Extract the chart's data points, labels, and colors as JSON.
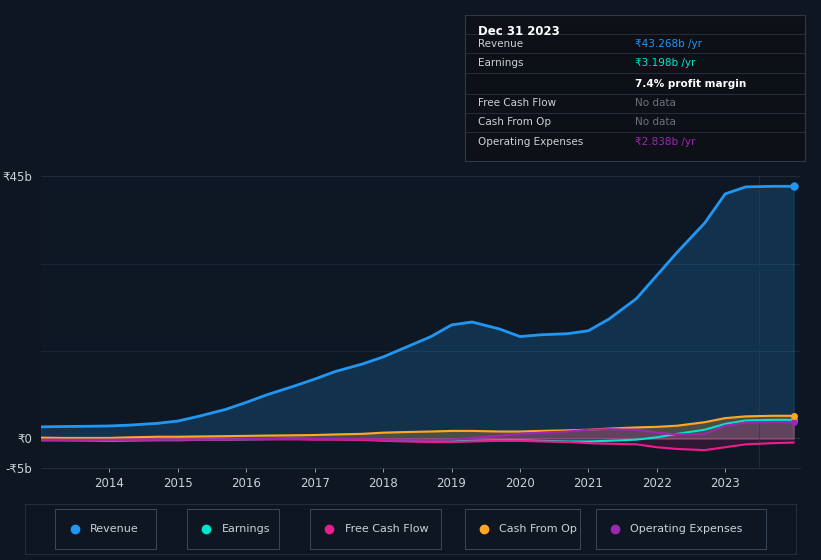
{
  "bg_color": "#0e1621",
  "chart_bg": "#0e1824",
  "grid_color": "#1e2d3d",
  "text_color": "#c9d1d9",
  "dim_text_color": "#6b7280",
  "years": [
    2013.0,
    2013.3,
    2013.7,
    2014.0,
    2014.3,
    2014.7,
    2015.0,
    2015.3,
    2015.7,
    2016.0,
    2016.3,
    2016.7,
    2017.0,
    2017.3,
    2017.7,
    2018.0,
    2018.3,
    2018.7,
    2019.0,
    2019.3,
    2019.7,
    2020.0,
    2020.3,
    2020.7,
    2021.0,
    2021.3,
    2021.7,
    2022.0,
    2022.3,
    2022.7,
    2023.0,
    2023.3,
    2023.7,
    2024.0
  ],
  "revenue": [
    2.0,
    2.05,
    2.1,
    2.15,
    2.3,
    2.6,
    3.0,
    3.8,
    5.0,
    6.2,
    7.5,
    9.0,
    10.2,
    11.5,
    12.8,
    14.0,
    15.5,
    17.5,
    19.5,
    20.0,
    18.8,
    17.5,
    17.8,
    18.0,
    18.5,
    20.5,
    24.0,
    28.0,
    32.0,
    37.0,
    42.0,
    43.2,
    43.3,
    43.3
  ],
  "earnings": [
    -0.3,
    -0.3,
    -0.35,
    -0.4,
    -0.35,
    -0.3,
    -0.3,
    -0.25,
    -0.2,
    -0.15,
    -0.1,
    -0.05,
    -0.1,
    -0.1,
    -0.15,
    -0.3,
    -0.4,
    -0.5,
    -0.5,
    -0.4,
    -0.3,
    -0.3,
    -0.4,
    -0.5,
    -0.5,
    -0.4,
    -0.2,
    0.2,
    0.8,
    1.5,
    2.5,
    3.1,
    3.2,
    3.2
  ],
  "free_cash_flow": [
    -0.3,
    -0.3,
    -0.3,
    -0.3,
    -0.25,
    -0.2,
    -0.2,
    -0.2,
    -0.2,
    -0.15,
    -0.15,
    -0.15,
    -0.2,
    -0.2,
    -0.25,
    -0.4,
    -0.5,
    -0.6,
    -0.6,
    -0.5,
    -0.4,
    -0.4,
    -0.5,
    -0.6,
    -0.8,
    -0.9,
    -1.0,
    -1.5,
    -1.8,
    -2.0,
    -1.5,
    -1.0,
    -0.8,
    -0.7
  ],
  "cash_from_op": [
    0.15,
    0.1,
    0.1,
    0.1,
    0.2,
    0.3,
    0.3,
    0.35,
    0.4,
    0.45,
    0.5,
    0.55,
    0.6,
    0.7,
    0.8,
    1.0,
    1.1,
    1.2,
    1.3,
    1.3,
    1.2,
    1.2,
    1.3,
    1.4,
    1.5,
    1.7,
    1.9,
    2.0,
    2.2,
    2.8,
    3.5,
    3.8,
    3.9,
    3.9
  ],
  "op_expenses": [
    -0.2,
    -0.2,
    -0.2,
    -0.2,
    -0.2,
    -0.2,
    -0.2,
    -0.2,
    -0.15,
    -0.1,
    -0.1,
    -0.05,
    -0.1,
    -0.1,
    -0.1,
    -0.15,
    -0.2,
    -0.25,
    -0.2,
    0.1,
    0.5,
    0.8,
    1.0,
    1.2,
    1.5,
    1.6,
    1.5,
    1.0,
    0.7,
    0.8,
    2.2,
    2.7,
    2.8,
    2.8
  ],
  "ylim": [
    -5,
    45
  ],
  "xlim": [
    2013.0,
    2024.1
  ],
  "xticks": [
    2014,
    2015,
    2016,
    2017,
    2018,
    2019,
    2020,
    2021,
    2022,
    2023
  ],
  "ytick_positions": [
    -5,
    0,
    45
  ],
  "ytick_labels": [
    "-₹5b",
    "₹0",
    "₹45b"
  ],
  "revenue_color": "#2196f3",
  "earnings_color": "#00e5cc",
  "free_cash_flow_color": "#e91e8c",
  "cash_from_op_color": "#ffa726",
  "op_expenses_color": "#9c27b0",
  "tooltip_title": "Dec 31 2023",
  "tooltip_rows": [
    {
      "label": "Revenue",
      "value": "₹43.268b /yr",
      "value_color": "#2196f3"
    },
    {
      "label": "Earnings",
      "value": "₹3.198b /yr",
      "value_color": "#00e5cc"
    },
    {
      "label": "",
      "value": "7.4% profit margin",
      "value_color": "#ffffff"
    },
    {
      "label": "Free Cash Flow",
      "value": "No data",
      "value_color": "#6b7280"
    },
    {
      "label": "Cash From Op",
      "value": "No data",
      "value_color": "#6b7280"
    },
    {
      "label": "Operating Expenses",
      "value": "₹2.838b /yr",
      "value_color": "#9c27b0"
    }
  ],
  "legend_items": [
    "Revenue",
    "Earnings",
    "Free Cash Flow",
    "Cash From Op",
    "Operating Expenses"
  ],
  "legend_colors": [
    "#2196f3",
    "#00e5cc",
    "#e91e8c",
    "#ffa726",
    "#9c27b0"
  ]
}
